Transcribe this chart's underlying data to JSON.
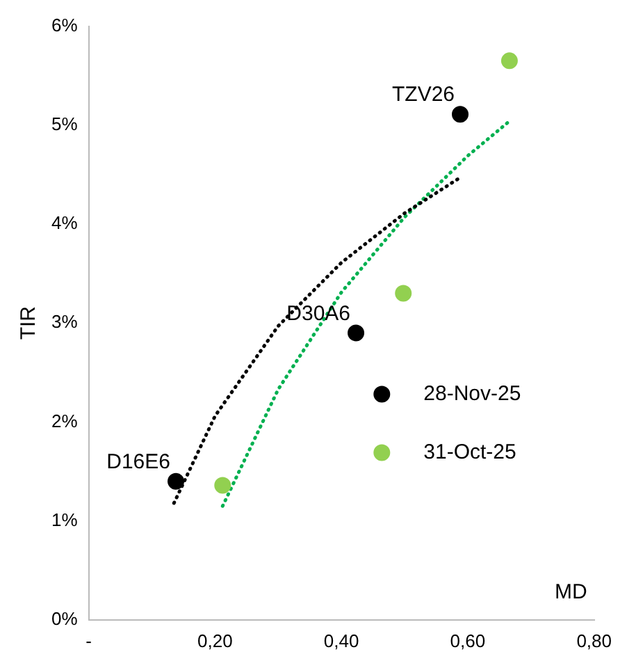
{
  "chart_data": {
    "type": "scatter",
    "xlabel": "MD",
    "ylabel": "TIR",
    "xlim": [
      0,
      0.8
    ],
    "xticks": [
      {
        "value": 0,
        "label": "-"
      },
      {
        "value": 0.2,
        "label": "0,20"
      },
      {
        "value": 0.4,
        "label": "0,40"
      },
      {
        "value": 0.6,
        "label": "0,60"
      },
      {
        "value": 0.8,
        "label": "0,80"
      }
    ],
    "ylim": [
      0,
      6
    ],
    "yticks": [
      {
        "value": 0,
        "label": "0%"
      },
      {
        "value": 1,
        "label": "1%"
      },
      {
        "value": 2,
        "label": "2%"
      },
      {
        "value": 3,
        "label": "3%"
      },
      {
        "value": 4,
        "label": "4%"
      },
      {
        "value": 5,
        "label": "5%"
      },
      {
        "value": 6,
        "label": "6%"
      }
    ],
    "grid": false,
    "legend": "right",
    "marker": "circle",
    "series": [
      {
        "name": "28-Nov-25",
        "color": "#000000",
        "x": [
          0.138,
          0.423,
          0.588
        ],
        "values": [
          1.4,
          2.9,
          5.11
        ]
      },
      {
        "name": "31-Oct-25",
        "color": "#92d050",
        "x": [
          0.212,
          0.498,
          0.666
        ],
        "values": [
          1.36,
          3.3,
          5.65
        ]
      },
      {
        "type": "line",
        "color": "#000000",
        "line_style": "dotted",
        "marker": "none",
        "x": [
          0.135,
          0.2,
          0.3,
          0.4,
          0.5,
          0.588
        ],
        "values": [
          1.18,
          2.06,
          2.97,
          3.61,
          4.11,
          4.47
        ]
      },
      {
        "type": "line",
        "color": "#00b050",
        "line_style": "dotted",
        "marker": "none",
        "x": [
          0.212,
          0.3,
          0.4,
          0.5,
          0.6,
          0.666
        ],
        "values": [
          1.15,
          2.33,
          3.31,
          4.07,
          4.69,
          5.04
        ]
      }
    ],
    "annotations": [
      {
        "text": "D16E6",
        "x": 0.138,
        "y": 1.4
      },
      {
        "text": "D30A6",
        "x": 0.423,
        "y": 2.9
      },
      {
        "text": "TZV26",
        "x": 0.588,
        "y": 5.11
      }
    ]
  }
}
